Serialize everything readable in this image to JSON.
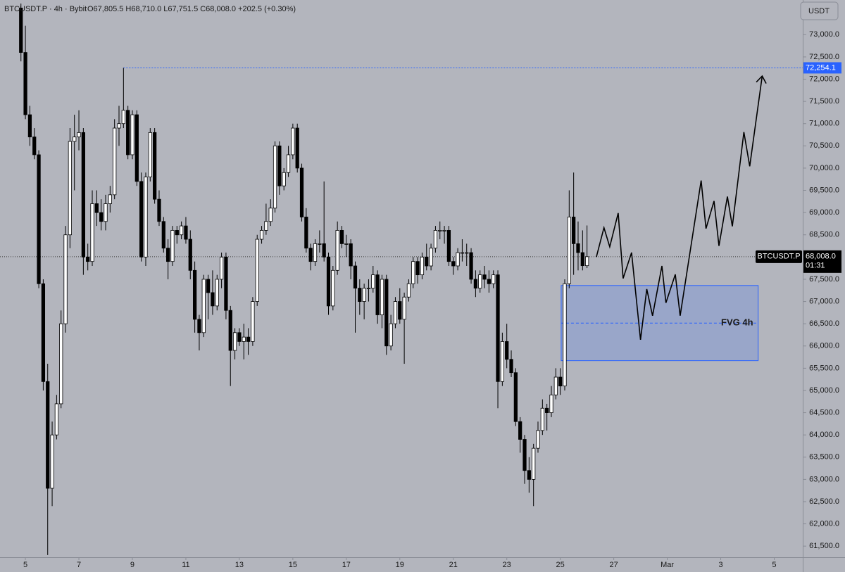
{
  "chart_data": {
    "type": "candlestick",
    "title": "BTCUSDT.P · 4h · Bybit",
    "ohlc_readout": "O67,805.5 H68,710.0 L67,751.5 C68,008.0 +202.5 (+0.30%)",
    "currency": "USDT",
    "up_color": "#ffffff",
    "down_color": "#000000",
    "xlim": [
      -4.7,
      175.4
    ],
    "ylim": [
      61250,
      73780
    ],
    "xticks": [
      {
        "value": 1,
        "label": "5"
      },
      {
        "value": 13,
        "label": "7"
      },
      {
        "value": 25,
        "label": "9"
      },
      {
        "value": 37,
        "label": "11"
      },
      {
        "value": 49,
        "label": "13"
      },
      {
        "value": 61,
        "label": "15"
      },
      {
        "value": 73,
        "label": "17"
      },
      {
        "value": 85,
        "label": "19"
      },
      {
        "value": 97,
        "label": "21"
      },
      {
        "value": 109,
        "label": "23"
      },
      {
        "value": 121,
        "label": "25"
      },
      {
        "value": 133,
        "label": "27"
      },
      {
        "value": 145,
        "label": "Mar"
      },
      {
        "value": 157,
        "label": "3"
      },
      {
        "value": 169,
        "label": "5"
      }
    ],
    "yticks": [
      {
        "value": 61500,
        "label": "61,500.0"
      },
      {
        "value": 62000,
        "label": "62,000.0"
      },
      {
        "value": 62500,
        "label": "62,500.0"
      },
      {
        "value": 63000,
        "label": "63,000.0"
      },
      {
        "value": 63500,
        "label": "63,500.0"
      },
      {
        "value": 64000,
        "label": "64,000.0"
      },
      {
        "value": 64500,
        "label": "64,500.0"
      },
      {
        "value": 65000,
        "label": "65,000.0"
      },
      {
        "value": 65500,
        "label": "65,500.0"
      },
      {
        "value": 66000,
        "label": "66,000.0"
      },
      {
        "value": 66500,
        "label": "66,500.0"
      },
      {
        "value": 67000,
        "label": "67,000.0"
      },
      {
        "value": 67500,
        "label": "67,500.0"
      },
      {
        "value": 68000,
        "label": "68,000.0"
      },
      {
        "value": 68500,
        "label": "68,500.0"
      },
      {
        "value": 69000,
        "label": "69,000.0"
      },
      {
        "value": 69500,
        "label": "69,500.0"
      },
      {
        "value": 70000,
        "label": "70,000.0"
      },
      {
        "value": 70500,
        "label": "70,500.0"
      },
      {
        "value": 71000,
        "label": "71,000.0"
      },
      {
        "value": 71500,
        "label": "71,500.0"
      },
      {
        "value": 72000,
        "label": "72,000.0"
      },
      {
        "value": 72500,
        "label": "72,500.0"
      },
      {
        "value": 73000,
        "label": "73,000.0"
      }
    ],
    "x": [
      0,
      1,
      2,
      3,
      4,
      5,
      6,
      7,
      8,
      9,
      10,
      11,
      12,
      13,
      14,
      15,
      16,
      17,
      18,
      19,
      20,
      21,
      22,
      23,
      24,
      25,
      26,
      27,
      28,
      29,
      30,
      31,
      32,
      33,
      34,
      35,
      36,
      37,
      38,
      39,
      40,
      41,
      42,
      43,
      44,
      45,
      46,
      47,
      48,
      49,
      50,
      51,
      52,
      53,
      54,
      55,
      56,
      57,
      58,
      59,
      60,
      61,
      62,
      63,
      64,
      65,
      66,
      67,
      68,
      69,
      70,
      71,
      72,
      73,
      74,
      75,
      76,
      77,
      78,
      79,
      80,
      81,
      82,
      83,
      84,
      85,
      86,
      87,
      88,
      89,
      90,
      91,
      92,
      93,
      94,
      95,
      96,
      97,
      98,
      99,
      100,
      101,
      102,
      103,
      104,
      105,
      106,
      107,
      108,
      109,
      110,
      111,
      112,
      113,
      114,
      115,
      116,
      117,
      118,
      119,
      120,
      121,
      122,
      123,
      124,
      125,
      126,
      127
    ],
    "ohlc": [
      [
        73600,
        73700,
        72400,
        72600
      ],
      [
        72600,
        73200,
        71100,
        71200
      ],
      [
        71200,
        71400,
        70500,
        70700
      ],
      [
        70700,
        70900,
        70200,
        70300
      ],
      [
        70300,
        70400,
        67300,
        67400
      ],
      [
        67400,
        67500,
        65000,
        65200
      ],
      [
        65200,
        65600,
        61300,
        62800
      ],
      [
        62800,
        64300,
        62400,
        64000
      ],
      [
        64000,
        64900,
        63900,
        64700
      ],
      [
        64700,
        66800,
        64600,
        66500
      ],
      [
        66500,
        68700,
        66300,
        68500
      ],
      [
        68500,
        70900,
        68200,
        70600
      ],
      [
        70600,
        71200,
        69500,
        70700
      ],
      [
        70700,
        71300,
        70400,
        70800
      ],
      [
        70800,
        70900,
        67600,
        68000
      ],
      [
        68000,
        68300,
        67700,
        67900
      ],
      [
        67900,
        69500,
        67800,
        69200
      ],
      [
        69200,
        69500,
        68700,
        69000
      ],
      [
        69000,
        69300,
        68600,
        68800
      ],
      [
        68800,
        69400,
        68600,
        69200
      ],
      [
        69200,
        69600,
        69000,
        69400
      ],
      [
        69400,
        71100,
        69300,
        70900
      ],
      [
        70900,
        71400,
        70500,
        71000
      ],
      [
        71000,
        72254.1,
        70900,
        71300
      ],
      [
        71300,
        71400,
        70200,
        70300
      ],
      [
        70300,
        71300,
        70200,
        71200
      ],
      [
        71200,
        71300,
        69600,
        69700
      ],
      [
        69700,
        69900,
        67900,
        68000
      ],
      [
        68000,
        69900,
        67800,
        69800
      ],
      [
        69800,
        70900,
        69700,
        70800
      ],
      [
        70800,
        70900,
        69200,
        69300
      ],
      [
        69300,
        69500,
        68700,
        68800
      ],
      [
        68800,
        68900,
        68100,
        68200
      ],
      [
        68200,
        68400,
        67500,
        67900
      ],
      [
        67900,
        68700,
        67800,
        68600
      ],
      [
        68600,
        68700,
        68300,
        68500
      ],
      [
        68500,
        68800,
        68400,
        68700
      ],
      [
        68700,
        68900,
        68300,
        68400
      ],
      [
        68400,
        68600,
        67500,
        67700
      ],
      [
        67700,
        67900,
        66300,
        66600
      ],
      [
        66600,
        66700,
        65900,
        66300
      ],
      [
        66300,
        67600,
        66200,
        67500
      ],
      [
        67500,
        67600,
        66600,
        67200
      ],
      [
        67200,
        67700,
        66700,
        66900
      ],
      [
        66900,
        67600,
        66800,
        67500
      ],
      [
        67500,
        68100,
        67300,
        68000
      ],
      [
        68000,
        68100,
        66600,
        66800
      ],
      [
        66800,
        66900,
        65100,
        65900
      ],
      [
        65900,
        66400,
        65700,
        66300
      ],
      [
        66300,
        66400,
        66000,
        66100
      ],
      [
        66100,
        66500,
        65700,
        66200
      ],
      [
        66200,
        66400,
        65800,
        66100
      ],
      [
        66100,
        67100,
        66000,
        67000
      ],
      [
        67000,
        68500,
        66900,
        68400
      ],
      [
        68400,
        68700,
        68300,
        68600
      ],
      [
        68600,
        69200,
        68500,
        68800
      ],
      [
        68800,
        69300,
        68700,
        69100
      ],
      [
        69100,
        70600,
        69000,
        70500
      ],
      [
        70500,
        70600,
        69400,
        69600
      ],
      [
        69600,
        70000,
        69500,
        69900
      ],
      [
        69900,
        70500,
        69800,
        70300
      ],
      [
        70300,
        71000,
        70200,
        70900
      ],
      [
        70900,
        71000,
        69900,
        70000
      ],
      [
        70000,
        70100,
        68800,
        68900
      ],
      [
        68900,
        69100,
        68100,
        68200
      ],
      [
        68200,
        68300,
        67700,
        67900
      ],
      [
        67900,
        68400,
        67800,
        68300
      ],
      [
        68300,
        68600,
        68100,
        68300
      ],
      [
        68300,
        69700,
        67900,
        68000
      ],
      [
        68000,
        68100,
        66700,
        66900
      ],
      [
        66900,
        67800,
        66800,
        67700
      ],
      [
        67700,
        68800,
        67600,
        68600
      ],
      [
        68600,
        68700,
        68200,
        68300
      ],
      [
        68300,
        68500,
        68000,
        68300
      ],
      [
        68300,
        68400,
        67500,
        67800
      ],
      [
        67800,
        67900,
        66300,
        67300
      ],
      [
        67300,
        67500,
        66700,
        67000
      ],
      [
        67000,
        67400,
        66600,
        67300
      ],
      [
        67300,
        67500,
        67000,
        67300
      ],
      [
        67300,
        67800,
        67200,
        67600
      ],
      [
        67600,
        67700,
        66500,
        66700
      ],
      [
        66700,
        67600,
        66400,
        67500
      ],
      [
        67500,
        67600,
        65800,
        66000
      ],
      [
        66000,
        66700,
        65900,
        66500
      ],
      [
        66500,
        67100,
        66400,
        67000
      ],
      [
        67000,
        67300,
        66500,
        66600
      ],
      [
        66600,
        67200,
        65600,
        67100
      ],
      [
        67100,
        67500,
        67000,
        67400
      ],
      [
        67400,
        68000,
        67300,
        67900
      ],
      [
        67900,
        68000,
        67400,
        67600
      ],
      [
        67600,
        68100,
        67500,
        68000
      ],
      [
        68000,
        68300,
        67700,
        67800
      ],
      [
        67800,
        68300,
        67700,
        68200
      ],
      [
        68200,
        68700,
        68100,
        68600
      ],
      [
        68600,
        68800,
        68400,
        68600
      ],
      [
        68600,
        68700,
        68300,
        68600
      ],
      [
        68600,
        68700,
        67800,
        67900
      ],
      [
        67900,
        68000,
        67600,
        67800
      ],
      [
        67800,
        68200,
        67700,
        68100
      ],
      [
        68100,
        68400,
        67900,
        68100
      ],
      [
        68100,
        68300,
        67800,
        68100
      ],
      [
        68100,
        68200,
        67400,
        67500
      ],
      [
        67500,
        67700,
        67100,
        67300
      ],
      [
        67300,
        67700,
        67200,
        67600
      ],
      [
        67600,
        67800,
        67300,
        67500
      ],
      [
        67500,
        67700,
        67200,
        67400
      ],
      [
        67400,
        67700,
        67300,
        67600
      ],
      [
        67600,
        67700,
        64600,
        65200
      ],
      [
        65200,
        66300,
        65100,
        66100
      ],
      [
        66100,
        66500,
        65500,
        65700
      ],
      [
        65700,
        65900,
        65300,
        65400
      ],
      [
        65400,
        65500,
        64200,
        64300
      ],
      [
        64300,
        64400,
        63600,
        63900
      ],
      [
        63900,
        64000,
        62900,
        63200
      ],
      [
        63200,
        63500,
        62700,
        63000
      ],
      [
        63000,
        63800,
        62400,
        63700
      ],
      [
        63700,
        64300,
        63600,
        64100
      ],
      [
        64100,
        64800,
        64000,
        64600
      ],
      [
        64600,
        64700,
        64100,
        64500
      ],
      [
        64500,
        65100,
        64400,
        64900
      ],
      [
        64900,
        65500,
        64800,
        65300
      ],
      [
        65300,
        65500,
        64900,
        65100
      ],
      [
        65100,
        67500,
        65000,
        67400
      ],
      [
        67400,
        69500,
        67300,
        68900
      ],
      [
        68900,
        69900,
        67600,
        68300
      ],
      [
        68300,
        68800,
        67700,
        68100
      ],
      [
        68100,
        68600,
        67700,
        67805.5
      ],
      [
        67805.5,
        68710.0,
        67751.5,
        68008.0
      ]
    ],
    "price_line": {
      "label": "BTCUSDT.P",
      "value": 68008.0,
      "value_label": "68,008.0",
      "countdown": "01:31"
    },
    "target_line": {
      "x": 23,
      "value": 72254.1,
      "label": "72,254.1",
      "color": "#2962ff"
    },
    "fvg": {
      "label": "FVG 4h",
      "x": [
        121.2,
        165.4
      ],
      "y": [
        65670,
        67360
      ],
      "color": "#2962ff"
    },
    "projection": {
      "x": [
        129.1,
        130.8,
        132.1,
        134,
        135.1,
        137,
        139,
        140.4,
        141.7,
        143.8,
        144.7,
        146.8,
        147.9,
        152.6,
        153.7,
        155.5,
        156.6,
        158.5,
        159.6,
        162.2,
        163.5,
        166.3
      ],
      "y": [
        68000,
        68660,
        68230,
        68990,
        67520,
        68100,
        66140,
        67280,
        66680,
        67800,
        66970,
        67610,
        66680,
        69720,
        68640,
        69260,
        68250,
        69360,
        68690,
        70810,
        70040,
        72070
      ]
    }
  }
}
